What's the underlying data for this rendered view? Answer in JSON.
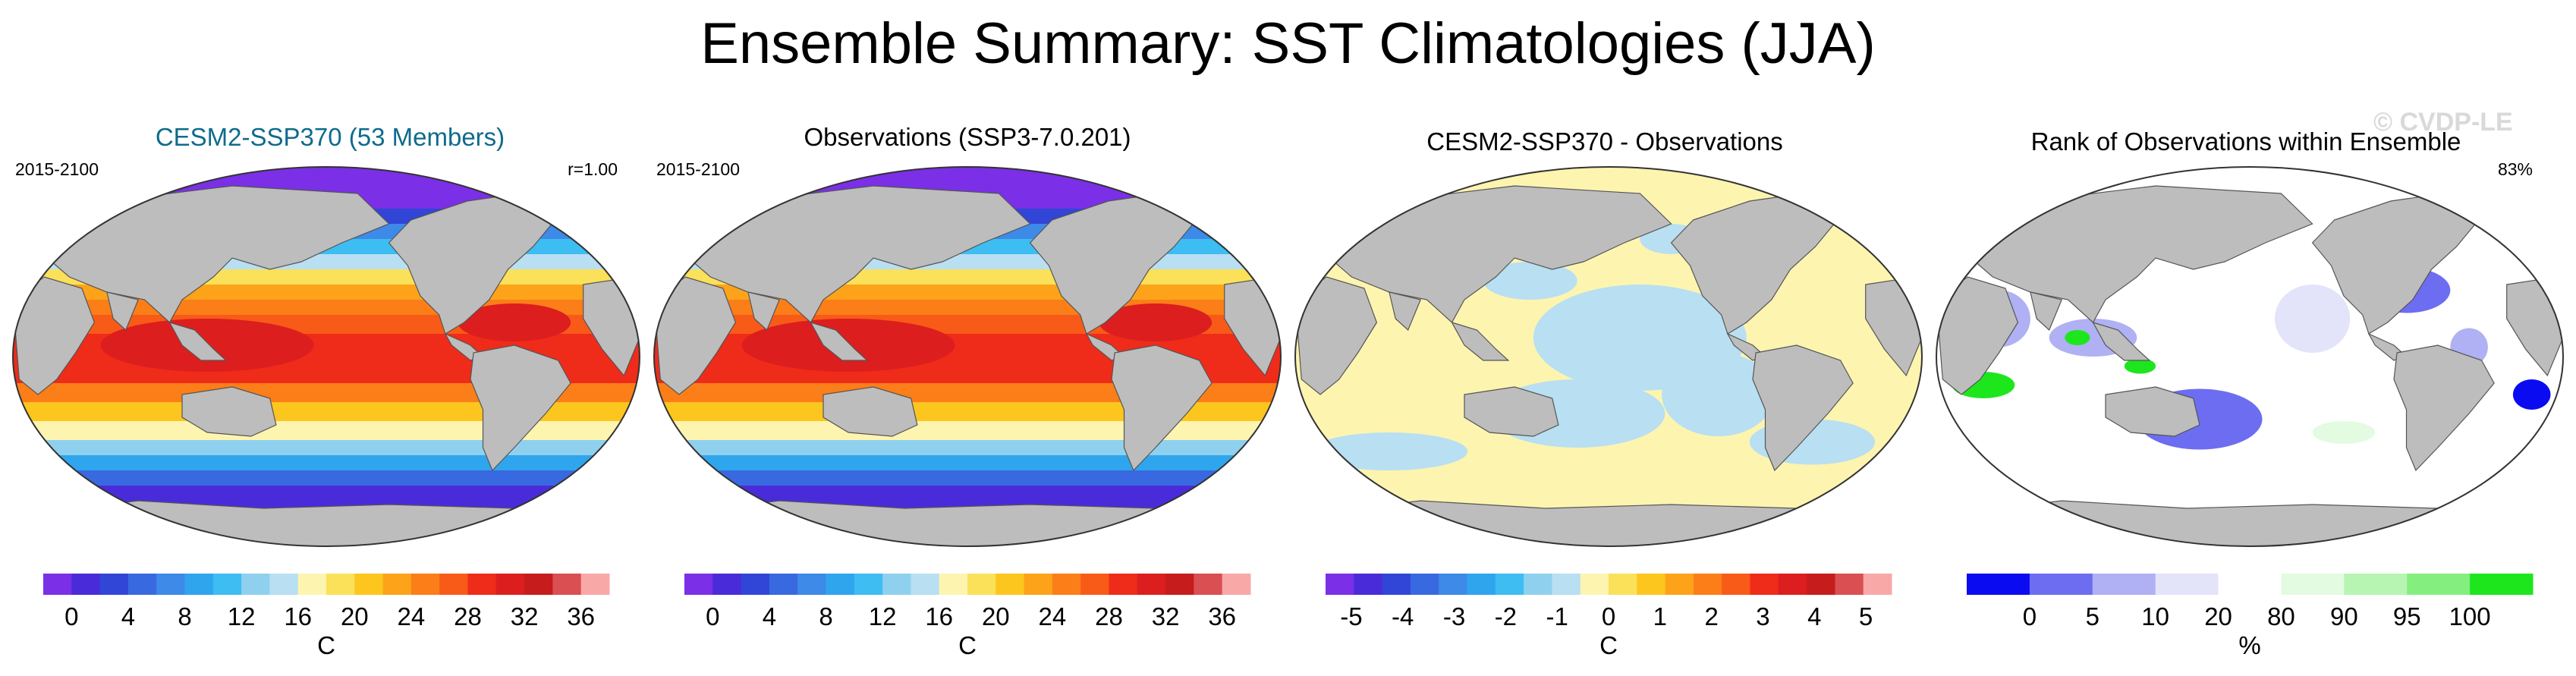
{
  "figure": {
    "title": "Ensemble Summary: SST Climatologies (JJA)",
    "watermark": "© CVDP-LE"
  },
  "colors": {
    "land": "#bdbdbd",
    "ocean_frame": "#ffffff",
    "sst_scale": [
      "#7b2fe6",
      "#4a2bd9",
      "#3145d6",
      "#3969e0",
      "#3d8ae8",
      "#2fa5ee",
      "#3dbdf2",
      "#8fd0ef",
      "#b8dff2",
      "#fdf4b0",
      "#fbe05a",
      "#fdc61e",
      "#fca31a",
      "#fb7e18",
      "#f85a18",
      "#ef2b1a",
      "#dc1e1e",
      "#c61c1c",
      "#d94f52",
      "#f9a8a8"
    ],
    "diff_scale": [
      "#7b2fe6",
      "#4a2bd9",
      "#3145d6",
      "#3969e0",
      "#3d8ae8",
      "#2fa5ee",
      "#3dbdf2",
      "#8fd0ef",
      "#b8dff2",
      "#fdf4b0",
      "#fbe05a",
      "#fdc61e",
      "#fca31a",
      "#fb7e18",
      "#f85a18",
      "#ef2b1a",
      "#dc1e1e",
      "#c61c1c",
      "#d94f52",
      "#f9a8a8"
    ],
    "rank_scale": [
      "#0b0bf2",
      "#6d6df1",
      "#b0b0f4",
      "#e3e3fa",
      "#ffffff",
      "#e3fbe1",
      "#b6f5b2",
      "#84ef7e",
      "#1de61d"
    ]
  },
  "chart_data": [
    {
      "type": "heatmap",
      "title": "CESM2-SSP370 (53 Members)",
      "left_label": "2015-2100",
      "right_label": "r=1.00",
      "colorbar": {
        "ticks": [
          "0",
          "4",
          "8",
          "12",
          "16",
          "20",
          "24",
          "28",
          "32",
          "36"
        ],
        "tick_values": [
          0,
          4,
          8,
          12,
          16,
          20,
          24,
          28,
          32,
          36
        ],
        "range": [
          -2,
          38
        ],
        "units": "C"
      },
      "field": "sst"
    },
    {
      "type": "heatmap",
      "title": "Observations (SSP3-7.0.201)",
      "left_label": "2015-2100",
      "right_label": "",
      "colorbar": {
        "ticks": [
          "0",
          "4",
          "8",
          "12",
          "16",
          "20",
          "24",
          "28",
          "32",
          "36"
        ],
        "tick_values": [
          0,
          4,
          8,
          12,
          16,
          20,
          24,
          28,
          32,
          36
        ],
        "range": [
          -2,
          38
        ],
        "units": "C"
      },
      "field": "sst"
    },
    {
      "type": "heatmap",
      "title": "CESM2-SSP370 - Observations",
      "left_label": "",
      "right_label": "",
      "colorbar": {
        "ticks": [
          "-5",
          "-4",
          "-3",
          "-2",
          "-1",
          "0",
          "1",
          "2",
          "3",
          "4",
          "5"
        ],
        "tick_values": [
          -5,
          -4,
          -3,
          -2,
          -1,
          0,
          1,
          2,
          3,
          4,
          5
        ],
        "range": [
          -5.5,
          5.5
        ],
        "units": "C"
      },
      "field": "diff"
    },
    {
      "type": "heatmap",
      "title": "Rank of Observations within Ensemble",
      "left_label": "",
      "right_label": "83%",
      "colorbar": {
        "ticks": [
          "0",
          "5",
          "10",
          "20",
          "80",
          "90",
          "95",
          "100"
        ],
        "tick_values": [
          0,
          5,
          10,
          20,
          80,
          90,
          95,
          100
        ],
        "range": [
          0,
          100
        ],
        "units": "%"
      },
      "field": "rank"
    }
  ]
}
